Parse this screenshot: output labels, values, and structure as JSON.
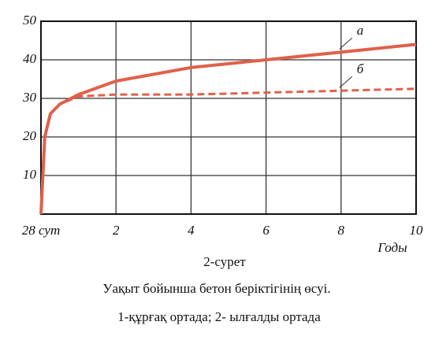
{
  "chart_data": {
    "type": "line",
    "x": [
      0,
      0.1,
      0.25,
      0.5,
      1,
      2,
      4,
      6,
      8,
      10
    ],
    "series": [
      {
        "name": "а",
        "color": "#e0604a",
        "dashed": false,
        "values": [
          0,
          20,
          26,
          28.5,
          31,
          34.5,
          38,
          40,
          42,
          44
        ]
      },
      {
        "name": "б",
        "color": "#e0604a",
        "dashed": true,
        "values": [
          0,
          20,
          26,
          28.5,
          30.5,
          31,
          31,
          31.5,
          32,
          32.5
        ]
      }
    ],
    "xlim": [
      0,
      10
    ],
    "xticks": [
      {
        "value": 0,
        "label": "28 сут"
      },
      2,
      4,
      6,
      8,
      10
    ],
    "ylim": [
      0,
      50
    ],
    "yticks": [
      10,
      20,
      30,
      40,
      50
    ],
    "xlabel": "Годы",
    "grid": true,
    "caption": [
      "2-сурет",
      "Уақыт бойынша бетон беріктігінің өсуі.",
      "1-құрғақ ортада; 2- ылғалды ортада"
    ]
  }
}
